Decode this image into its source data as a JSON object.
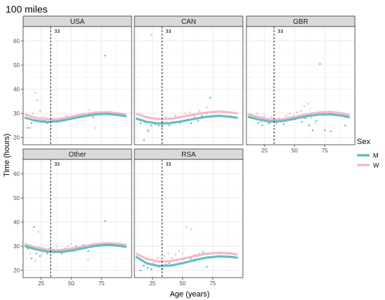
{
  "chart_data": {
    "type": "scatter",
    "title": "100 miles",
    "xlabel": "Age (years)",
    "ylabel": "Time (hours)",
    "xlim": [
      10,
      100
    ],
    "ylim": [
      17,
      66
    ],
    "x_ticks": [
      25,
      50,
      75
    ],
    "y_ticks": [
      20,
      30,
      40,
      50,
      60
    ],
    "vline": {
      "x": 33,
      "label": "33"
    },
    "legend": {
      "title": "Sex",
      "position": "right",
      "items": [
        {
          "key": "M",
          "label": "M",
          "color": "#5bbcc0"
        },
        {
          "key": "W",
          "label": "W",
          "color": "#f5b5c5"
        }
      ]
    },
    "facets": [
      {
        "name": "USA",
        "smooth": {
          "M": {
            "x": [
              12,
              20,
              30,
              40,
              50,
              60,
              70,
              80,
              90,
              95
            ],
            "y": [
              28.2,
              27.0,
              26.4,
              26.8,
              27.8,
              28.8,
              29.6,
              29.8,
              29.3,
              28.8
            ]
          },
          "W": {
            "x": [
              12,
              20,
              30,
              40,
              50,
              60,
              70,
              80,
              90,
              95
            ],
            "y": [
              29.5,
              28.2,
              27.5,
              27.7,
              28.6,
              29.6,
              30.3,
              30.5,
              30.0,
              29.5
            ]
          }
        },
        "points": {
          "M": [
            [
              14,
              24
            ],
            [
              17,
              26
            ],
            [
              20,
              28
            ],
            [
              23,
              27
            ],
            [
              25,
              26.5
            ],
            [
              28,
              27
            ],
            [
              30,
              26
            ],
            [
              33,
              26.5
            ],
            [
              35,
              27
            ],
            [
              38,
              26.5
            ],
            [
              41,
              27
            ],
            [
              44,
              27
            ],
            [
              47,
              27.5
            ],
            [
              50,
              28
            ],
            [
              53,
              28
            ],
            [
              56,
              28.5
            ],
            [
              60,
              29
            ],
            [
              64,
              29
            ],
            [
              68,
              28.5
            ],
            [
              74,
              29.5
            ],
            [
              78,
              54
            ]
          ],
          "W": [
            [
              16,
              24
            ],
            [
              18,
              30
            ],
            [
              20,
              38.5
            ],
            [
              22,
              35.5
            ],
            [
              24,
              31
            ],
            [
              27,
              28.5
            ],
            [
              30,
              28
            ],
            [
              34,
              27.5
            ],
            [
              38,
              27
            ],
            [
              42,
              28
            ],
            [
              46,
              29
            ],
            [
              50,
              28.5
            ],
            [
              55,
              29.5
            ],
            [
              60,
              30
            ],
            [
              65,
              31.5
            ],
            [
              70,
              24
            ]
          ]
        }
      },
      {
        "name": "CAN",
        "smooth": {
          "M": {
            "x": [
              12,
              20,
              30,
              40,
              50,
              60,
              70,
              80,
              90,
              95
            ],
            "y": [
              27.8,
              26.5,
              25.8,
              26.0,
              26.8,
              27.8,
              28.6,
              29.0,
              28.6,
              28.2
            ]
          },
          "W": {
            "x": [
              12,
              20,
              30,
              40,
              50,
              60,
              70,
              80,
              90,
              95
            ],
            "y": [
              29.8,
              28.4,
              27.6,
              27.8,
              28.6,
              29.6,
              30.4,
              30.8,
              30.4,
              30.0
            ]
          }
        },
        "points": {
          "M": [
            [
              15,
              26
            ],
            [
              18,
              19
            ],
            [
              21,
              23
            ],
            [
              24,
              25
            ],
            [
              27,
              25.5
            ],
            [
              30,
              25
            ],
            [
              33,
              24.5
            ],
            [
              36,
              26
            ],
            [
              39,
              25
            ],
            [
              42,
              26
            ],
            [
              45,
              26.5
            ],
            [
              48,
              26
            ],
            [
              51,
              27
            ],
            [
              54,
              27.5
            ],
            [
              57,
              26
            ],
            [
              60,
              28
            ],
            [
              63,
              27
            ],
            [
              66,
              29
            ],
            [
              70,
              30
            ],
            [
              73,
              36.5
            ]
          ],
          "W": [
            [
              19,
              26.5
            ],
            [
              22,
              22.5
            ],
            [
              24,
              62.5
            ],
            [
              27,
              27.5
            ],
            [
              30,
              28
            ],
            [
              33,
              26.5
            ],
            [
              36,
              28.5
            ],
            [
              40,
              28
            ],
            [
              44,
              29
            ],
            [
              48,
              28.5
            ],
            [
              52,
              30
            ],
            [
              56,
              30.5
            ],
            [
              60,
              29
            ],
            [
              64,
              31
            ],
            [
              70,
              32.5
            ]
          ]
        }
      },
      {
        "name": "GBR",
        "smooth": {
          "M": {
            "x": [
              12,
              20,
              30,
              40,
              50,
              60,
              70,
              80,
              90,
              95
            ],
            "y": [
              28.5,
              27.5,
              26.6,
              26.8,
              27.8,
              28.8,
              29.5,
              29.6,
              29.0,
              28.4
            ]
          },
          "W": {
            "x": [
              12,
              20,
              30,
              40,
              50,
              60,
              70,
              80,
              90,
              95
            ],
            "y": [
              29.6,
              28.5,
              27.4,
              27.6,
              28.5,
              29.6,
              30.4,
              30.6,
              30.0,
              29.3
            ]
          }
        },
        "points": {
          "M": [
            [
              14,
              29
            ],
            [
              17,
              28
            ],
            [
              20,
              26
            ],
            [
              23,
              25
            ],
            [
              26,
              27
            ],
            [
              29,
              26
            ],
            [
              32,
              27.5
            ],
            [
              35,
              26
            ],
            [
              38,
              27
            ],
            [
              41,
              25.5
            ],
            [
              44,
              27.5
            ],
            [
              47,
              28
            ],
            [
              50,
              27.5
            ],
            [
              53,
              29
            ],
            [
              56,
              26.5
            ],
            [
              59,
              28
            ],
            [
              62,
              25
            ],
            [
              65,
              23
            ],
            [
              68,
              27
            ],
            [
              71,
              50.5
            ],
            [
              75,
              23
            ],
            [
              80,
              22.5
            ],
            [
              92,
              25
            ]
          ],
          "W": [
            [
              16,
              28
            ],
            [
              19,
              30
            ],
            [
              22,
              26.5
            ],
            [
              25,
              29
            ],
            [
              28,
              26
            ],
            [
              31,
              28.5
            ],
            [
              34,
              27
            ],
            [
              37,
              28
            ],
            [
              40,
              27.5
            ],
            [
              43,
              29
            ],
            [
              46,
              30
            ],
            [
              49,
              29
            ],
            [
              52,
              30.5
            ],
            [
              55,
              31
            ],
            [
              58,
              33
            ],
            [
              61,
              34
            ],
            [
              64,
              28
            ],
            [
              67,
              26
            ]
          ]
        }
      },
      {
        "name": "Other",
        "smooth": {
          "M": {
            "x": [
              12,
              20,
              30,
              40,
              50,
              60,
              70,
              80,
              90,
              95
            ],
            "y": [
              30.0,
              28.8,
              27.8,
              27.6,
              28.2,
              29.2,
              30.2,
              30.6,
              30.2,
              29.8
            ]
          },
          "W": {
            "x": [
              12,
              20,
              30,
              40,
              50,
              60,
              70,
              80,
              90,
              95
            ],
            "y": [
              30.8,
              29.6,
              28.6,
              28.4,
              29.0,
              30.0,
              30.9,
              31.3,
              31.0,
              30.6
            ]
          }
        },
        "points": {
          "M": [
            [
              14,
              29
            ],
            [
              17,
              25
            ],
            [
              19,
              38
            ],
            [
              21,
              27
            ],
            [
              24,
              26
            ],
            [
              27,
              28
            ],
            [
              30,
              27
            ],
            [
              33,
              28
            ],
            [
              36,
              27.5
            ],
            [
              39,
              28.5
            ],
            [
              42,
              27
            ],
            [
              45,
              29
            ],
            [
              48,
              28
            ],
            [
              51,
              28.5
            ],
            [
              54,
              30
            ],
            [
              57,
              29
            ],
            [
              60,
              30.5
            ],
            [
              64,
              28
            ],
            [
              68,
              30
            ],
            [
              75,
              30.5
            ],
            [
              78,
              40.5
            ]
          ],
          "W": [
            [
              16,
              27
            ],
            [
              20,
              24
            ],
            [
              23,
              36
            ],
            [
              26,
              27
            ],
            [
              29,
              28
            ],
            [
              32,
              29
            ],
            [
              35,
              27.5
            ],
            [
              38,
              30
            ],
            [
              41,
              28.5
            ],
            [
              44,
              27.5
            ],
            [
              47,
              30
            ],
            [
              50,
              31
            ],
            [
              53,
              28
            ],
            [
              56,
              29.5
            ],
            [
              60,
              29
            ],
            [
              64,
              24.5
            ],
            [
              68,
              31
            ]
          ]
        }
      },
      {
        "name": "RSA",
        "smooth": {
          "M": {
            "x": [
              12,
              20,
              30,
              40,
              50,
              60,
              70,
              80,
              90,
              95
            ],
            "y": [
              25.5,
              23.0,
              21.8,
              22.0,
              23.0,
              24.3,
              25.3,
              25.8,
              25.6,
              25.3
            ]
          },
          "W": {
            "x": [
              12,
              20,
              30,
              40,
              50,
              60,
              70,
              80,
              90,
              95
            ],
            "y": [
              26.8,
              24.8,
              23.6,
              23.8,
              24.8,
              26.0,
              26.9,
              27.3,
              27.0,
              26.6
            ]
          }
        },
        "points": {
          "M": [
            [
              15,
              20
            ],
            [
              18,
              22
            ],
            [
              21,
              21
            ],
            [
              24,
              20.5
            ],
            [
              27,
              22
            ],
            [
              30,
              21.5
            ],
            [
              33,
              20.5
            ],
            [
              36,
              22.5
            ],
            [
              39,
              23
            ],
            [
              42,
              22
            ],
            [
              45,
              24
            ],
            [
              48,
              23
            ],
            [
              51,
              24.5
            ],
            [
              54,
              23.5
            ],
            [
              57,
              25
            ],
            [
              60,
              24
            ],
            [
              63,
              26
            ],
            [
              67,
              27.5
            ],
            [
              70,
              21.5
            ]
          ],
          "W": [
            [
              17,
              22
            ],
            [
              20,
              25
            ],
            [
              23,
              24.5
            ],
            [
              26,
              23
            ],
            [
              29,
              25
            ],
            [
              32,
              24
            ],
            [
              35,
              26
            ],
            [
              38,
              27
            ],
            [
              41,
              25
            ],
            [
              44,
              26.5
            ],
            [
              47,
              28
            ],
            [
              50,
              27
            ],
            [
              53,
              38
            ],
            [
              57,
              37
            ],
            [
              60,
              26.5
            ],
            [
              64,
              27
            ]
          ]
        }
      }
    ]
  }
}
